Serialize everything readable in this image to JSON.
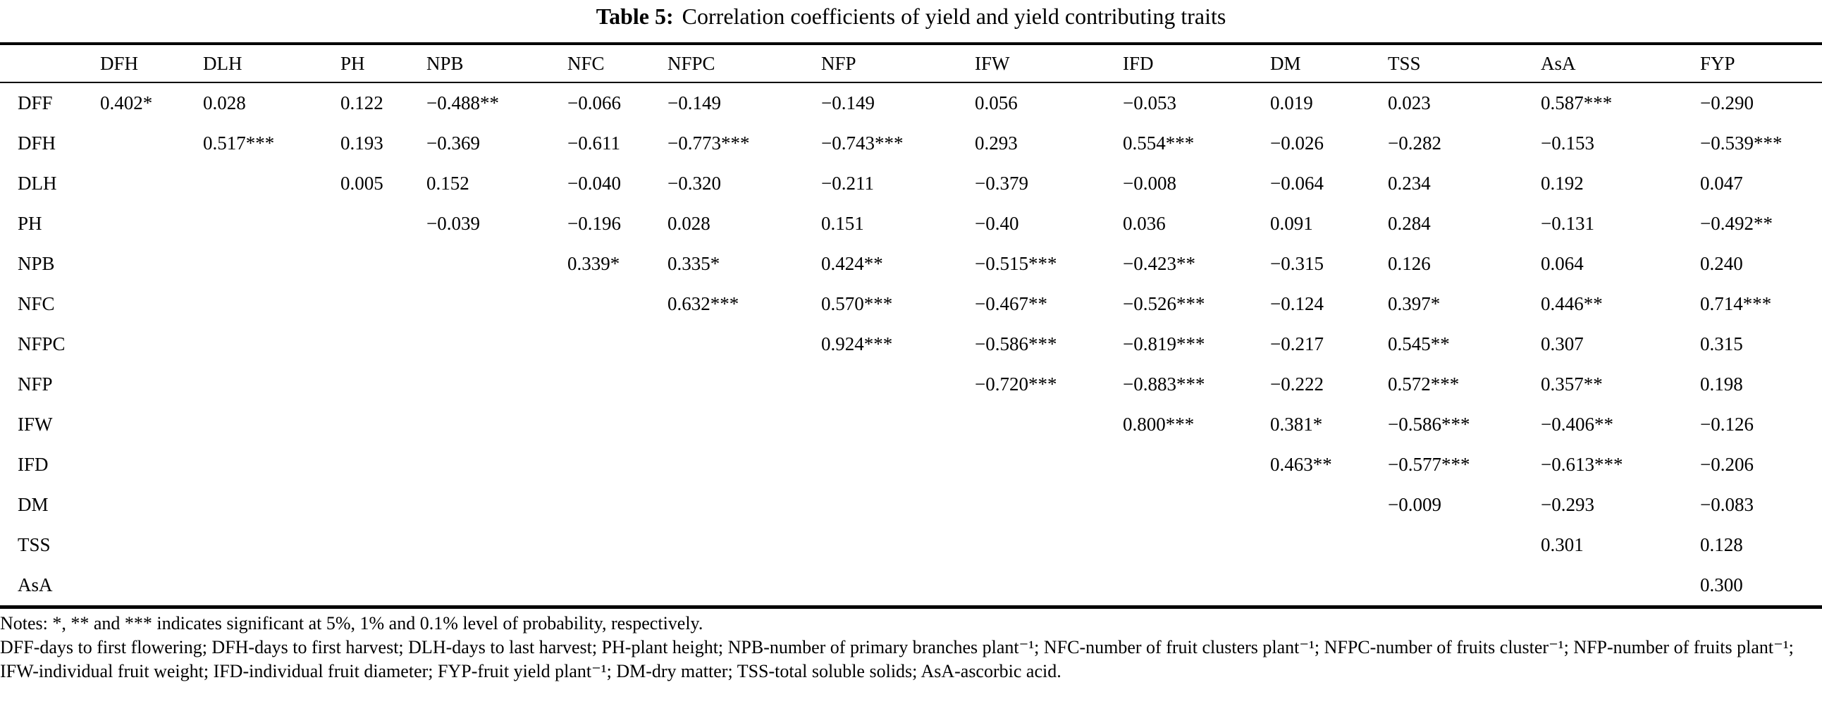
{
  "title": {
    "label": "Table 5:",
    "text": "Correlation coefficients of yield and yield contributing traits"
  },
  "table": {
    "columns": [
      "",
      "DFH",
      "DLH",
      "PH",
      "NPB",
      "NFC",
      "NFPC",
      "NFP",
      "IFW",
      "IFD",
      "DM",
      "TSS",
      "AsA",
      "FYP"
    ],
    "rows": [
      {
        "label": "DFF",
        "values": [
          "0.402*",
          "0.028",
          "0.122",
          "−0.488**",
          "−0.066",
          "−0.149",
          "−0.149",
          "0.056",
          "−0.053",
          "0.019",
          "0.023",
          "0.587***",
          "−0.290"
        ]
      },
      {
        "label": "DFH",
        "values": [
          "",
          "0.517***",
          "0.193",
          "−0.369",
          "−0.611",
          "−0.773***",
          "−0.743***",
          "0.293",
          "0.554***",
          "−0.026",
          "−0.282",
          "−0.153",
          "−0.539***"
        ]
      },
      {
        "label": "DLH",
        "values": [
          "",
          "",
          "0.005",
          "0.152",
          "−0.040",
          "−0.320",
          "−0.211",
          "−0.379",
          "−0.008",
          "−0.064",
          "0.234",
          "0.192",
          "0.047"
        ]
      },
      {
        "label": "PH",
        "values": [
          "",
          "",
          "",
          "−0.039",
          "−0.196",
          "0.028",
          "0.151",
          "−0.40",
          "0.036",
          "0.091",
          "0.284",
          "−0.131",
          "−0.492**"
        ]
      },
      {
        "label": "NPB",
        "values": [
          "",
          "",
          "",
          "",
          "0.339*",
          "0.335*",
          "0.424**",
          "−0.515***",
          "−0.423**",
          "−0.315",
          "0.126",
          "0.064",
          "0.240"
        ]
      },
      {
        "label": "NFC",
        "values": [
          "",
          "",
          "",
          "",
          "",
          "0.632***",
          "0.570***",
          "−0.467**",
          "−0.526***",
          "−0.124",
          "0.397*",
          "0.446**",
          "0.714***"
        ]
      },
      {
        "label": "NFPC",
        "values": [
          "",
          "",
          "",
          "",
          "",
          "",
          "0.924***",
          "−0.586***",
          "−0.819***",
          "−0.217",
          "0.545**",
          "0.307",
          "0.315"
        ]
      },
      {
        "label": "NFP",
        "values": [
          "",
          "",
          "",
          "",
          "",
          "",
          "",
          "−0.720***",
          "−0.883***",
          "−0.222",
          "0.572***",
          "0.357**",
          "0.198"
        ]
      },
      {
        "label": "IFW",
        "values": [
          "",
          "",
          "",
          "",
          "",
          "",
          "",
          "",
          "0.800***",
          "0.381*",
          "−0.586***",
          "−0.406**",
          "−0.126"
        ]
      },
      {
        "label": "IFD",
        "values": [
          "",
          "",
          "",
          "",
          "",
          "",
          "",
          "",
          "",
          "0.463**",
          "−0.577***",
          "−0.613***",
          "−0.206"
        ]
      },
      {
        "label": "DM",
        "values": [
          "",
          "",
          "",
          "",
          "",
          "",
          "",
          "",
          "",
          "",
          "−0.009",
          "−0.293",
          "−0.083"
        ]
      },
      {
        "label": "TSS",
        "values": [
          "",
          "",
          "",
          "",
          "",
          "",
          "",
          "",
          "",
          "",
          "",
          "0.301",
          "0.128"
        ]
      },
      {
        "label": "AsA",
        "values": [
          "",
          "",
          "",
          "",
          "",
          "",
          "",
          "",
          "",
          "",
          "",
          "",
          "0.300"
        ]
      }
    ]
  },
  "notes": {
    "significance": "Notes: *, ** and *** indicates significant at 5%, 1% and 0.1% level of probability, respectively.",
    "abbreviations": "DFF-days to first flowering; DFH-days to first harvest; DLH-days to last harvest; PH-plant height; NPB-number of primary branches plant⁻¹; NFC-number of fruit clusters plant⁻¹; NFPC-number of fruits cluster⁻¹; NFP-number of fruits plant⁻¹; IFW-individual fruit weight; IFD-individual fruit diameter; FYP-fruit yield plant⁻¹; DM-dry matter; TSS-total soluble solids; AsA-ascorbic acid."
  }
}
